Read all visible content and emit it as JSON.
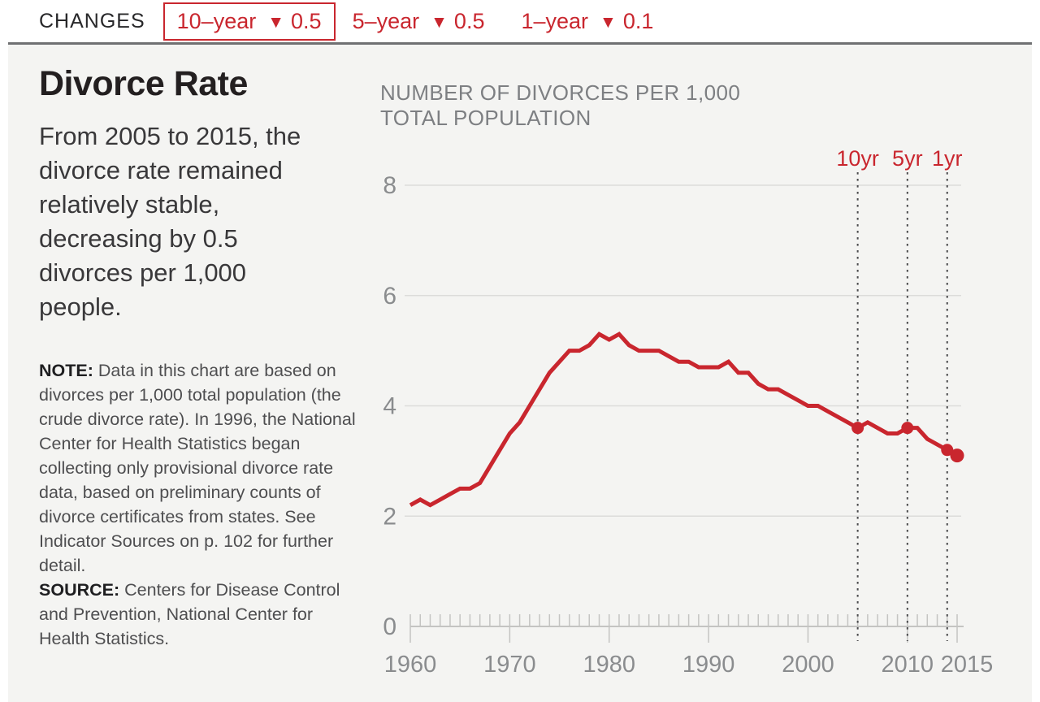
{
  "header": {
    "label": "CHANGES",
    "triangle_glyph": "▼",
    "changes": [
      {
        "period": "10–year",
        "direction": "down",
        "value": "0.5",
        "boxed": true
      },
      {
        "period": "5–year",
        "direction": "down",
        "value": "0.5",
        "boxed": false
      },
      {
        "period": "1–year",
        "direction": "down",
        "value": "0.1",
        "boxed": false
      }
    ]
  },
  "sidebar": {
    "title": "Divorce Rate",
    "intro": "From 2005 to 2015, the\ndivorce rate remained\nrelatively stable,\ndecreasing by 0.5\ndivorces per 1,000\npeople.",
    "note_label": "NOTE:",
    "note_text": "Data in this chart are based on divorces per 1,000 total population (the crude divorce rate). In 1996, the National Center for Health Statistics began collecting only provisional divorce rate data, based on preliminary counts of divorce certificates from states. See Indicator Sources on p. 102 for further detail.",
    "source_label": "SOURCE:",
    "source_text": "Centers for Disease Control and Prevention, National Center for Health Statistics."
  },
  "chart_data": {
    "type": "line",
    "title": "NUMBER OF DIVORCES PER 1,000\nTOTAL POPULATION",
    "xlabel": "",
    "ylabel": "Divorces per 1,000 total population",
    "x_start": 1960,
    "x_end": 2015,
    "x_step": 1,
    "ylim": [
      0,
      8
    ],
    "yticks": [
      0,
      2,
      4,
      6,
      8
    ],
    "xticks": [
      1960,
      1970,
      1980,
      1990,
      2000,
      2010,
      2015
    ],
    "grid": true,
    "legend_position": "none",
    "series": [
      {
        "name": "Divorce rate",
        "values": [
          2.2,
          2.3,
          2.2,
          2.3,
          2.4,
          2.5,
          2.5,
          2.6,
          2.9,
          3.2,
          3.5,
          3.7,
          4.0,
          4.3,
          4.6,
          4.8,
          5.0,
          5.0,
          5.1,
          5.3,
          5.2,
          5.3,
          5.1,
          5.0,
          5.0,
          5.0,
          4.9,
          4.8,
          4.8,
          4.7,
          4.7,
          4.7,
          4.8,
          4.6,
          4.6,
          4.4,
          4.3,
          4.3,
          4.2,
          4.1,
          4.0,
          4.0,
          3.9,
          3.8,
          3.7,
          3.6,
          3.7,
          3.6,
          3.5,
          3.5,
          3.6,
          3.6,
          3.4,
          3.3,
          3.2,
          3.1
        ]
      }
    ],
    "marked_points": [
      {
        "x": 2005,
        "y": 3.6
      },
      {
        "x": 2010,
        "y": 3.6
      },
      {
        "x": 2014,
        "y": 3.2
      },
      {
        "x": 2015,
        "y": 3.1,
        "end": true
      }
    ],
    "change_markers": [
      {
        "label": "10yr",
        "x": 2005
      },
      {
        "label": "5yr",
        "x": 2010
      },
      {
        "label": "1yr",
        "x": 2014
      }
    ]
  },
  "colors": {
    "accent_red": "#c9262e",
    "panel_bg": "#f4f4f2",
    "grid": "#dcdcda",
    "axis": "#c4c4c2",
    "axis_text": "#8a8c8e",
    "heading_gray": "#7d7f82",
    "title_black": "#231f20",
    "note_text": "#4e4e50",
    "divider": "#6f7072",
    "marker_line": "#4b4b4d"
  }
}
